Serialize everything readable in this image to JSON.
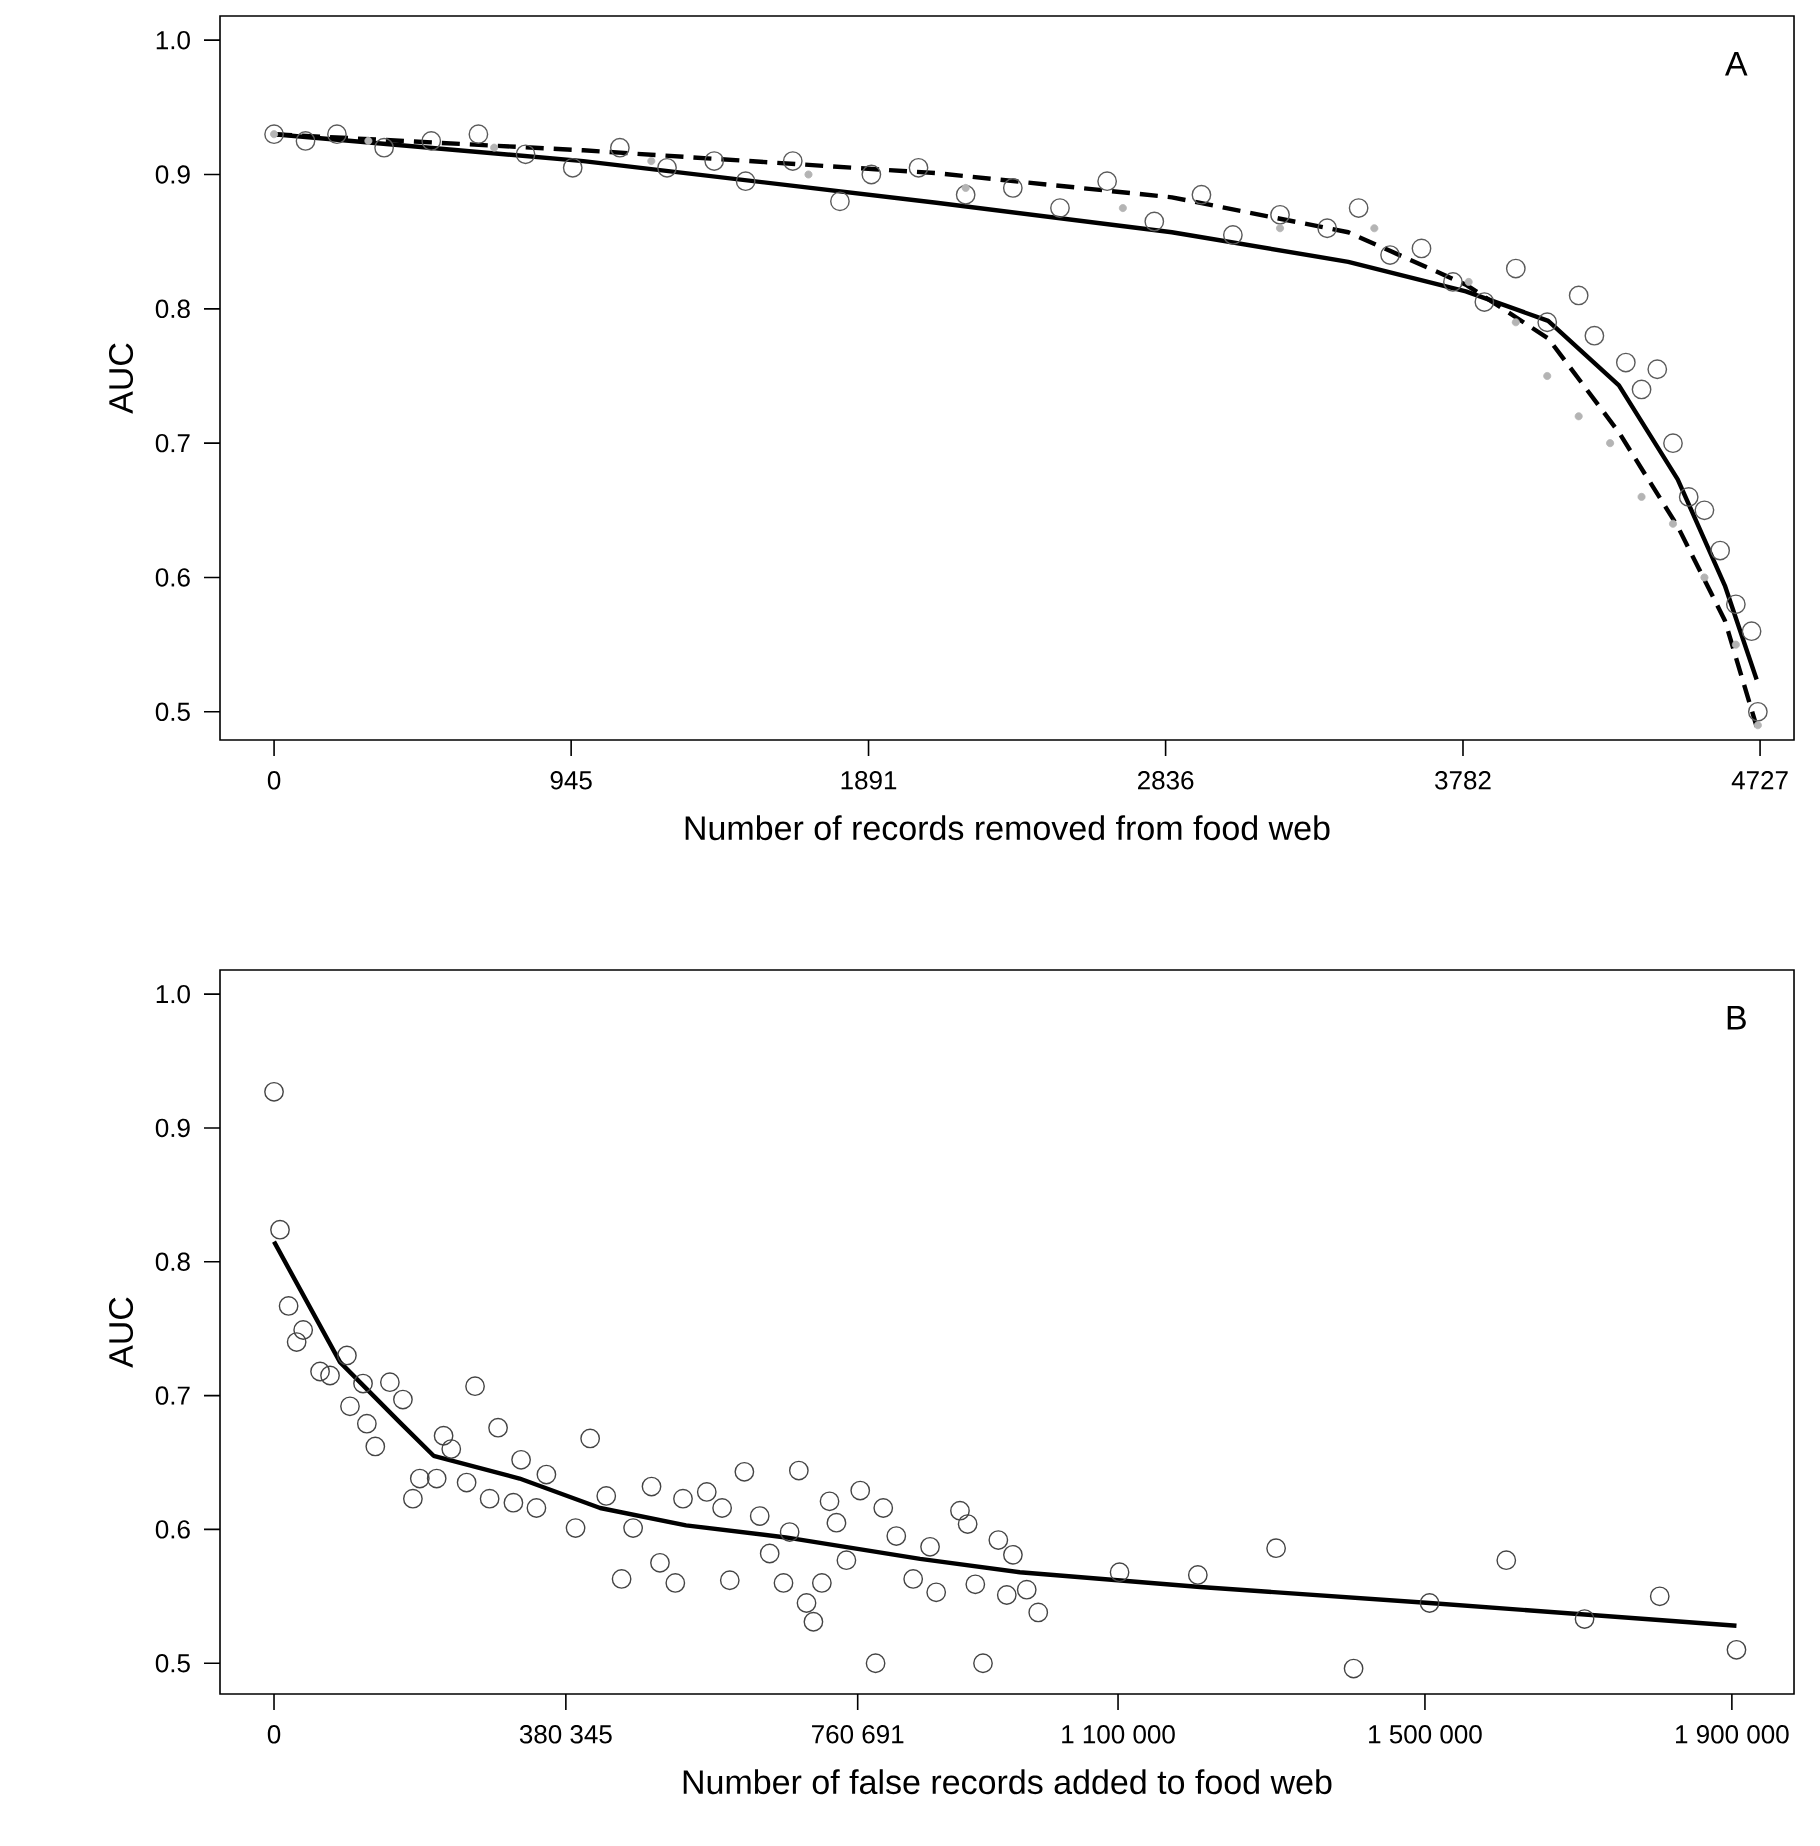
{
  "chart_data": [
    {
      "type": "scatter",
      "xlabel": "Number of records removed from food web",
      "ylabel": "AUC",
      "annotations": [
        "A"
      ],
      "xlim": [
        -172,
        4835
      ],
      "ylim": [
        0.479,
        1.018
      ],
      "xticks": [
        0,
        945,
        1891,
        2836,
        3782,
        4727
      ],
      "yticks": [
        {
          "value": 0.5,
          "label": "0.5"
        },
        {
          "value": 0.6,
          "label": "0.6"
        },
        {
          "value": 0.7,
          "label": "0.7"
        },
        {
          "value": 0.8,
          "label": "0.8"
        },
        {
          "value": 0.9,
          "label": "0.9"
        },
        {
          "value": 1.0,
          "label": "1.0"
        }
      ],
      "grid": false,
      "series": [
        {
          "marker": "circle",
          "color": "#5a5a5a",
          "x": [
            0,
            100,
            200,
            350,
            500,
            650,
            800,
            950,
            1100,
            1250,
            1400,
            1500,
            1650,
            1800,
            1900,
            2050,
            2200,
            2350,
            2500,
            2650,
            2800,
            2950,
            3050,
            3200,
            3350,
            3450,
            3550,
            3650,
            3750,
            3850,
            3950,
            4050,
            4150,
            4200,
            4300,
            4350,
            4400,
            4450,
            4500,
            4550,
            4600,
            4650,
            4700,
            4720
          ],
          "values": [
            0.93,
            0.925,
            0.93,
            0.92,
            0.925,
            0.93,
            0.915,
            0.905,
            0.92,
            0.905,
            0.91,
            0.895,
            0.91,
            0.88,
            0.9,
            0.905,
            0.885,
            0.89,
            0.875,
            0.895,
            0.865,
            0.885,
            0.855,
            0.87,
            0.86,
            0.875,
            0.84,
            0.845,
            0.82,
            0.805,
            0.83,
            0.79,
            0.81,
            0.78,
            0.76,
            0.74,
            0.755,
            0.7,
            0.66,
            0.65,
            0.62,
            0.58,
            0.56,
            0.5
          ]
        },
        {
          "marker": "circle",
          "color": "#b4b4b4",
          "x": [
            0,
            300,
            700,
            1200,
            1700,
            2200,
            2700,
            3200,
            3500,
            3800,
            3950,
            4050,
            4150,
            4250,
            4350,
            4450,
            4550,
            4650,
            4720
          ],
          "values": [
            0.93,
            0.925,
            0.92,
            0.91,
            0.9,
            0.89,
            0.875,
            0.86,
            0.86,
            0.82,
            0.79,
            0.75,
            0.72,
            0.7,
            0.66,
            0.64,
            0.6,
            0.55,
            0.49
          ]
        },
        {
          "type": "line",
          "line_style": "solid",
          "color": "#000000",
          "x": [
            0,
            984,
            2107,
            2856,
            3417,
            3791,
            4053,
            4278,
            4465,
            4615,
            4716
          ],
          "values": [
            0.93,
            0.91,
            0.879,
            0.857,
            0.835,
            0.813,
            0.791,
            0.743,
            0.673,
            0.594,
            0.524
          ]
        },
        {
          "type": "line",
          "line_style": "dashed",
          "color": "#000000",
          "x": [
            0,
            984,
            2107,
            2856,
            3417,
            3791,
            4053,
            4278,
            4465,
            4615,
            4716
          ],
          "values": [
            0.93,
            0.918,
            0.901,
            0.883,
            0.857,
            0.818,
            0.778,
            0.708,
            0.638,
            0.568,
            0.489
          ]
        }
      ]
    },
    {
      "type": "scatter",
      "xlabel": "Number of false records added to food web",
      "ylabel": "AUC",
      "annotations": [
        "B"
      ],
      "xlim": [
        -70400,
        1981000
      ],
      "ylim": [
        0.477,
        1.018
      ],
      "xticks": [
        0,
        {
          "value": 380345,
          "label": "380 345"
        },
        {
          "value": 760691,
          "label": "760 691"
        },
        {
          "value": 1100000,
          "label": "1 100 000"
        },
        {
          "value": 1500000,
          "label": "1 500 000"
        },
        {
          "value": 1900000,
          "label": "1 900 000"
        }
      ],
      "yticks": [
        {
          "value": 0.5,
          "label": "0.5"
        },
        {
          "value": 0.6,
          "label": "0.6"
        },
        {
          "value": 0.7,
          "label": "0.7"
        },
        {
          "value": 0.8,
          "label": "0.8"
        },
        {
          "value": 0.9,
          "label": "0.9"
        },
        {
          "value": 1.0,
          "label": "1.0"
        }
      ],
      "grid": false,
      "series": [
        {
          "marker": "circle",
          "color": "#444444",
          "x": [
            0,
            7800,
            19000,
            29500,
            38000,
            60000,
            73000,
            95000,
            99000,
            116000,
            121000,
            132000,
            151000,
            168000,
            181000,
            190000,
            212000,
            221000,
            231000,
            251000,
            262000,
            281000,
            292000,
            312000,
            322000,
            342000,
            355000,
            393000,
            412000,
            433000,
            453000,
            468000,
            492000,
            503000,
            523000,
            533000,
            564000,
            584000,
            594000,
            613000,
            633000,
            646000,
            664000,
            672000,
            684000,
            694000,
            703000,
            714000,
            724000,
            733000,
            746000,
            764000,
            784000,
            794000,
            811000,
            833000,
            855000,
            863000,
            894000,
            904000,
            914000,
            924000,
            944000,
            955000,
            963000,
            981000,
            996000,
            1102000,
            1204000,
            1306000,
            1407000,
            1506000,
            1606000,
            1708000,
            1806000,
            1906000
          ],
          "values": [
            0.927,
            0.824,
            0.767,
            0.74,
            0.749,
            0.718,
            0.715,
            0.73,
            0.692,
            0.709,
            0.679,
            0.662,
            0.71,
            0.697,
            0.623,
            0.638,
            0.638,
            0.67,
            0.66,
            0.635,
            0.707,
            0.623,
            0.676,
            0.62,
            0.652,
            0.616,
            0.641,
            0.601,
            0.668,
            0.625,
            0.563,
            0.601,
            0.632,
            0.575,
            0.56,
            0.623,
            0.628,
            0.616,
            0.562,
            0.643,
            0.61,
            0.582,
            0.56,
            0.598,
            0.644,
            0.545,
            0.531,
            0.56,
            0.621,
            0.605,
            0.577,
            0.629,
            0.5,
            0.616,
            0.595,
            0.563,
            0.587,
            0.553,
            0.614,
            0.604,
            0.559,
            0.5,
            0.592,
            0.551,
            0.581,
            0.555,
            0.538,
            0.568,
            0.566,
            0.586,
            0.496,
            0.545,
            0.577,
            0.533,
            0.55,
            0.51
          ]
        },
        {
          "type": "line",
          "line_style": "solid",
          "color": "#000000",
          "x": [
            0,
            86000,
            164000,
            208000,
            320000,
            425000,
            537000,
            667000,
            842000,
            972000,
            1207000,
            1506000,
            1906000
          ],
          "values": [
            0.815,
            0.725,
            0.68,
            0.655,
            0.638,
            0.616,
            0.603,
            0.594,
            0.578,
            0.568,
            0.557,
            0.545,
            0.528
          ]
        }
      ]
    }
  ]
}
